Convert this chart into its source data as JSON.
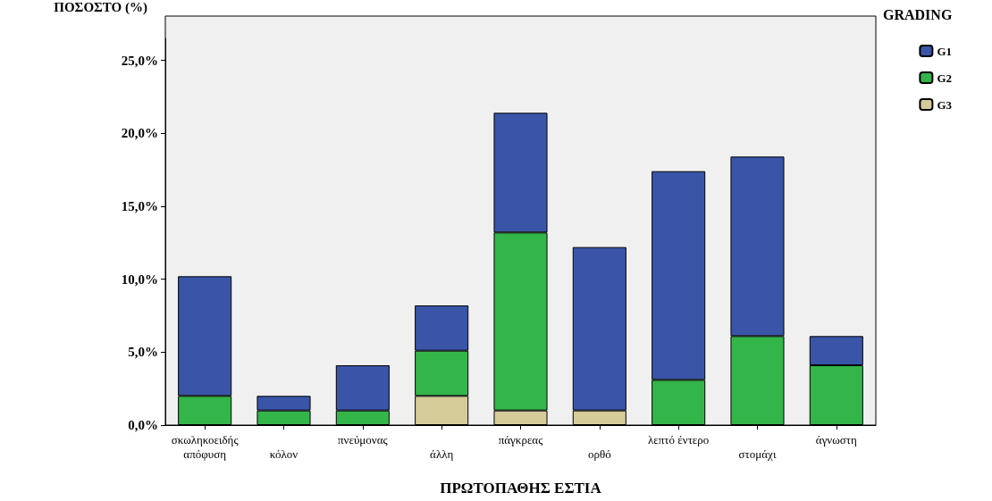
{
  "chart_data": {
    "type": "bar",
    "stacked": true,
    "xlabel": "ΠΡΩΤΟΠΑΘΗΣ ΕΣΤΙΑ",
    "ylabel": "ΠΟΣΟΣΤΟ (%)",
    "legend_title": "GRADING",
    "legend": "top right",
    "grid": false,
    "categories": [
      "σκωληκοειδής απόφυση",
      "κόλον",
      "πνεύμονας",
      "άλλη",
      "πάγκρεας",
      "ορθό",
      "λεπτό έντερο",
      "στομάχι",
      "άγνωστη"
    ],
    "series": [
      {
        "name": "G3",
        "color": "#d6cc9a",
        "values": [
          null,
          null,
          null,
          2.0,
          1.0,
          1.0,
          null,
          null,
          null
        ]
      },
      {
        "name": "G2",
        "color": "#33b54a",
        "values": [
          2.0,
          1.0,
          1.0,
          3.1,
          12.2,
          null,
          3.1,
          6.1,
          4.1
        ]
      },
      {
        "name": "G1",
        "color": "#3a55a8",
        "values": [
          8.2,
          1.0,
          3.1,
          3.1,
          8.2,
          11.2,
          14.3,
          12.3,
          2.0
        ]
      }
    ],
    "ylim": [
      0,
      26.5
    ],
    "yticks": [
      {
        "value": 0,
        "label": "0,0%"
      },
      {
        "value": 5,
        "label": "5,0%"
      },
      {
        "value": 10,
        "label": "10,0%"
      },
      {
        "value": 15,
        "label": "15,0%"
      },
      {
        "value": 20,
        "label": "20,0%"
      },
      {
        "value": 25,
        "label": "25,0%"
      }
    ]
  }
}
